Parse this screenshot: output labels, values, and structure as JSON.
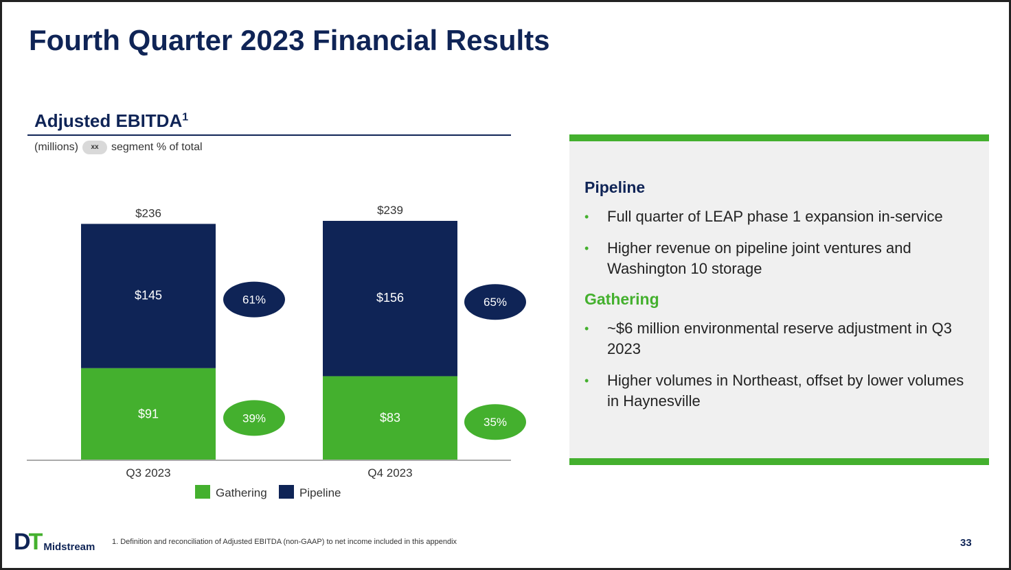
{
  "title": "Fourth Quarter 2023 Financial Results",
  "chart_heading": "Adjusted EBITDA",
  "chart_heading_sup": "1",
  "units_note": "(millions)",
  "pill_label": "xx",
  "pill_note": "segment % of total",
  "colors": {
    "pipeline": "#0f2456",
    "gathering": "#44b02e",
    "accent": "#44b02e"
  },
  "chart_data": {
    "type": "bar",
    "stacked": true,
    "categories": [
      "Q3 2023",
      "Q4 2023"
    ],
    "series": [
      {
        "name": "Gathering",
        "values": [
          91,
          83
        ],
        "value_labels": [
          "$91",
          "$83"
        ],
        "share_labels": [
          "39%",
          "35%"
        ],
        "color": "#44b02e"
      },
      {
        "name": "Pipeline",
        "values": [
          145,
          156
        ],
        "value_labels": [
          "$145",
          "$156"
        ],
        "share_labels": [
          "61%",
          "65%"
        ],
        "color": "#0f2456"
      }
    ],
    "totals": [
      236,
      239
    ],
    "total_labels": [
      "$236",
      "$239"
    ],
    "ylim": [
      0,
      239
    ],
    "legend": [
      "Gathering",
      "Pipeline"
    ],
    "legend_position": "bottom"
  },
  "panel": {
    "pipeline_heading": "Pipeline",
    "pipeline_bullets": [
      "Full quarter of LEAP phase 1 expansion in-service",
      "Higher revenue on pipeline joint ventures and Washington 10 storage"
    ],
    "gathering_heading": "Gathering",
    "gathering_bullets": [
      "~$6 million environmental reserve adjustment in Q3 2023",
      "Higher volumes in Northeast, offset by lower volumes in Haynesville"
    ],
    "bullet_glyph": "•"
  },
  "logo": {
    "mark_d": "D",
    "mark_t": "T",
    "word": "Midstream"
  },
  "footnote": "1.   Definition and reconciliation of Adjusted EBITDA (non-GAAP) to net income included in this appendix",
  "page_number": "33"
}
